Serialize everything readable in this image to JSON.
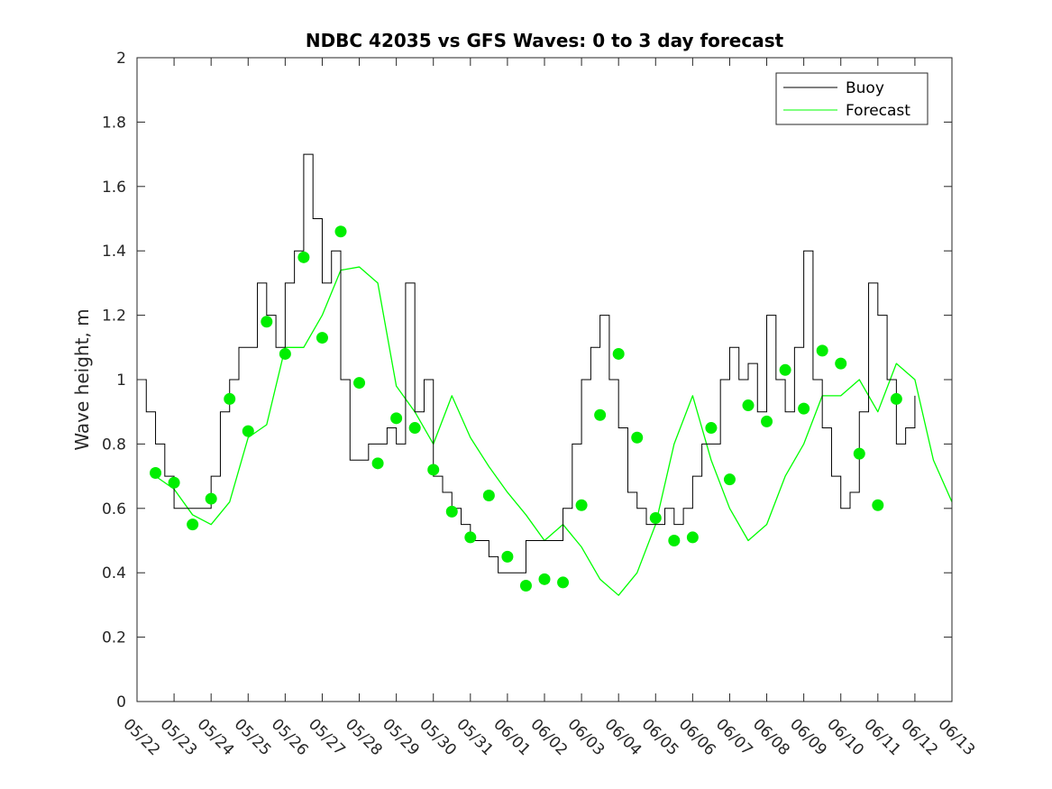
{
  "chart_data": {
    "type": "line",
    "title": "NDBC 42035 vs GFS Waves: 0 to 3 day forecast",
    "xlabel": "",
    "ylabel": "Wave height, m",
    "x_tick_labels": [
      "05/22",
      "05/23",
      "05/24",
      "05/25",
      "05/26",
      "05/27",
      "05/28",
      "05/29",
      "05/30",
      "05/31",
      "06/01",
      "06/02",
      "06/03",
      "06/04",
      "06/05",
      "06/06",
      "06/07",
      "06/08",
      "06/09",
      "06/10",
      "06/11",
      "06/12",
      "06/13"
    ],
    "y_tick_labels": [
      "0",
      "0.2",
      "0.4",
      "0.6",
      "0.8",
      "1",
      "1.2",
      "1.4",
      "1.6",
      "1.8",
      "2"
    ],
    "xlim": [
      0,
      22
    ],
    "ylim": [
      0,
      2
    ],
    "grid": false,
    "legend": {
      "position": "top-right",
      "entries": [
        "Buoy",
        "Forecast"
      ]
    },
    "colors": {
      "buoy": "#000000",
      "forecast": "#00ff00",
      "marker": "#00ee00",
      "axes": "#262626"
    },
    "series": [
      {
        "name": "Buoy",
        "x": [
          0,
          0.25,
          0.5,
          0.75,
          1,
          1.25,
          1.5,
          1.75,
          2,
          2.25,
          2.5,
          2.75,
          3,
          3.25,
          3.5,
          3.75,
          4,
          4.25,
          4.5,
          4.75,
          5,
          5.25,
          5.5,
          5.75,
          6,
          6.25,
          6.5,
          6.75,
          7,
          7.25,
          7.5,
          7.75,
          8,
          8.25,
          8.5,
          8.75,
          9,
          9.25,
          9.5,
          9.75,
          10,
          10.25,
          10.5,
          10.75,
          11,
          11.25,
          11.5,
          11.75,
          12,
          12.25,
          12.5,
          12.75,
          13,
          13.25,
          13.5,
          13.75,
          14,
          14.25,
          14.5,
          14.75,
          15,
          15.25,
          15.5,
          15.75,
          16,
          16.25,
          16.5,
          16.75,
          17,
          17.25,
          17.5,
          17.75,
          18,
          18.25,
          18.5,
          18.75,
          19,
          19.25,
          19.5,
          19.75,
          20,
          20.25,
          20.5,
          20.75,
          21
        ],
        "y": [
          1.0,
          0.9,
          0.8,
          0.7,
          0.6,
          0.6,
          0.6,
          0.6,
          0.7,
          0.9,
          1.0,
          1.1,
          1.1,
          1.3,
          1.2,
          1.1,
          1.3,
          1.4,
          1.7,
          1.5,
          1.3,
          1.4,
          1.0,
          0.75,
          0.75,
          0.8,
          0.8,
          0.85,
          0.8,
          1.3,
          0.9,
          1.0,
          0.7,
          0.65,
          0.6,
          0.55,
          0.5,
          0.5,
          0.45,
          0.4,
          0.4,
          0.4,
          0.5,
          0.5,
          0.5,
          0.5,
          0.6,
          0.8,
          1.0,
          1.1,
          1.2,
          1.0,
          0.85,
          0.65,
          0.6,
          0.55,
          0.55,
          0.6,
          0.55,
          0.6,
          0.7,
          0.8,
          0.8,
          1.0,
          1.1,
          1.0,
          1.05,
          0.9,
          1.2,
          1.0,
          0.9,
          1.1,
          1.4,
          1.0,
          0.85,
          0.7,
          0.6,
          0.65,
          0.9,
          1.3,
          1.2,
          1.0,
          0.8,
          0.85,
          0.95
        ]
      },
      {
        "name": "Forecast",
        "x": [
          0.5,
          1,
          1.5,
          2,
          2.5,
          3,
          3.5,
          4,
          4.5,
          5,
          5.5,
          6,
          6.5,
          7,
          7.5,
          8,
          8.5,
          9,
          9.5,
          10,
          10.5,
          11,
          11.5,
          12,
          12.5,
          13,
          13.5,
          14,
          14.5,
          15,
          15.5,
          16,
          16.5,
          17,
          17.5,
          18,
          18.5,
          19,
          19.5,
          20,
          20.5,
          21,
          21.5,
          22
        ],
        "y": [
          0.7,
          0.66,
          0.58,
          0.55,
          0.62,
          0.82,
          0.86,
          1.1,
          1.1,
          1.2,
          1.34,
          1.35,
          1.3,
          0.98,
          0.9,
          0.8,
          0.95,
          0.82,
          0.73,
          0.65,
          0.58,
          0.5,
          0.55,
          0.48,
          0.38,
          0.33,
          0.4,
          0.55,
          0.8,
          0.95,
          0.75,
          0.6,
          0.5,
          0.55,
          0.7,
          0.8,
          0.95,
          0.95,
          1.0,
          0.9,
          1.05,
          1.0,
          0.75,
          0.62
        ]
      }
    ],
    "markers": {
      "name": "Forecast start points",
      "x": [
        0.5,
        1,
        1.5,
        2,
        2.5,
        3,
        3.5,
        4,
        4.5,
        5,
        5.5,
        6,
        6.5,
        7,
        7.5,
        8,
        8.5,
        9,
        9.5,
        10,
        10.5,
        11,
        11.5,
        12,
        12.5,
        13,
        13.5,
        14,
        14.5,
        15,
        15.5,
        16,
        16.5,
        17,
        17.5,
        18,
        18.5,
        19,
        19.5,
        20,
        20.5
      ],
      "y": [
        0.71,
        0.68,
        0.55,
        0.63,
        0.94,
        0.84,
        1.18,
        1.08,
        1.38,
        1.13,
        1.46,
        0.99,
        0.74,
        0.88,
        0.85,
        0.72,
        0.59,
        0.51,
        0.64,
        0.45,
        0.36,
        0.38,
        0.37,
        0.61,
        0.89,
        1.08,
        0.82,
        0.57,
        0.5,
        0.51,
        0.85,
        0.69,
        0.92,
        0.87,
        1.03,
        0.91,
        1.09,
        1.05,
        0.77,
        0.61,
        0.94
      ]
    }
  }
}
